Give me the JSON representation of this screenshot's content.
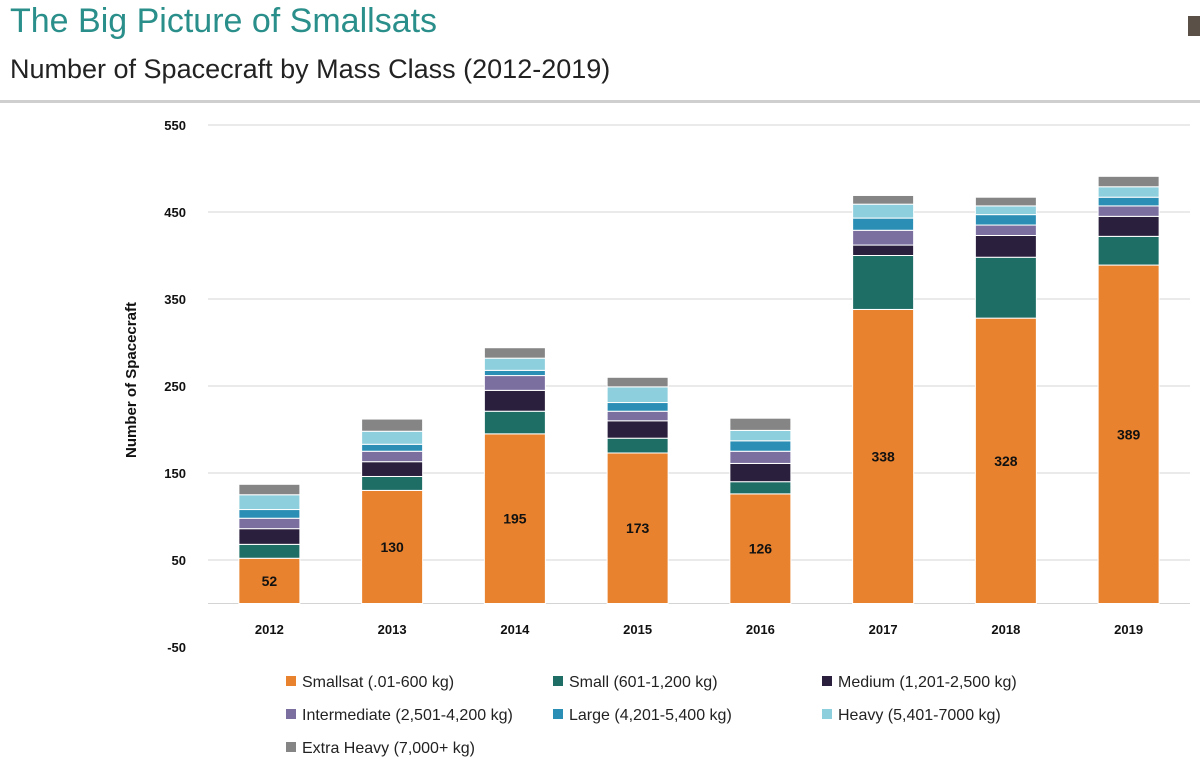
{
  "page": {
    "title": "The Big Picture of Smallsats",
    "subtitle": "Number of Spacecraft by Mass Class (2012-2019)"
  },
  "chart_data": {
    "type": "bar",
    "stacked": true,
    "title": "Number of Spacecraft by Mass Class (2012-2019)",
    "xlabel": "",
    "ylabel": "Number of Spacecraft",
    "ylim": [
      -50,
      550
    ],
    "yticks": [
      550,
      450,
      350,
      250,
      150,
      50,
      -50
    ],
    "grid": true,
    "legend_position": "bottom",
    "categories": [
      "2012",
      "2013",
      "2014",
      "2015",
      "2016",
      "2017",
      "2018",
      "2019"
    ],
    "series": [
      {
        "name": "Smallsat (.01-600 kg)",
        "color": "#e8822e",
        "values": [
          52,
          130,
          195,
          173,
          126,
          338,
          328,
          389
        ],
        "show_labels": true
      },
      {
        "name": "Small (601-1,200 kg)",
        "color": "#1e6e66",
        "values": [
          16,
          16,
          26,
          17,
          14,
          62,
          70,
          33
        ]
      },
      {
        "name": "Medium (1,201-2,500 kg)",
        "color": "#2a1f3d",
        "values": [
          18,
          17,
          24,
          20,
          21,
          12,
          25,
          23
        ]
      },
      {
        "name": "Intermediate (2,501-4,200 kg)",
        "color": "#7b6fa0",
        "values": [
          12,
          12,
          17,
          11,
          14,
          17,
          12,
          12
        ]
      },
      {
        "name": "Large (4,201-5,400 kg)",
        "color": "#2b8fb5",
        "values": [
          10,
          8,
          6,
          10,
          12,
          14,
          12,
          10
        ]
      },
      {
        "name": "Heavy (5,401-7000 kg)",
        "color": "#8ecfdd",
        "values": [
          17,
          15,
          14,
          18,
          12,
          16,
          10,
          12
        ]
      },
      {
        "name": "Extra Heavy (7,000+ kg)",
        "color": "#858585",
        "values": [
          12,
          14,
          12,
          11,
          14,
          10,
          10,
          12
        ]
      }
    ]
  }
}
